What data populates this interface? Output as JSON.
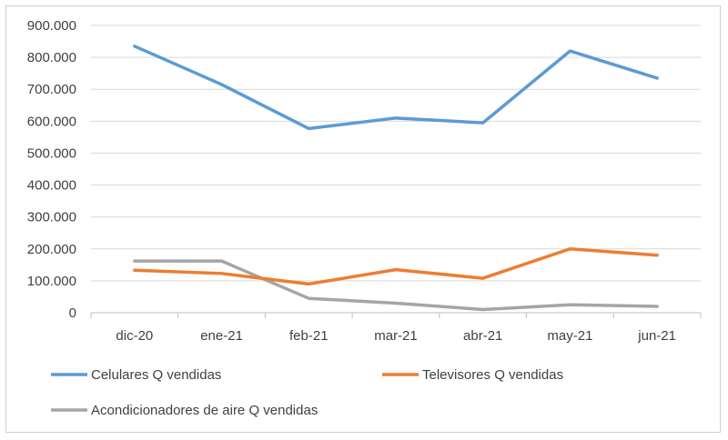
{
  "chart_data": {
    "type": "line",
    "categories": [
      "dic-20",
      "ene-21",
      "feb-21",
      "mar-21",
      "abr-21",
      "may-21",
      "jun-21"
    ],
    "series": [
      {
        "name": "Celulares Q vendidas",
        "color": "#5B9BD5",
        "values": [
          835000,
          715000,
          577000,
          610000,
          595000,
          820000,
          735000
        ]
      },
      {
        "name": "Televisores Q vendidas",
        "color": "#ED7D31",
        "values": [
          133000,
          123000,
          90000,
          135000,
          108000,
          200000,
          180000
        ]
      },
      {
        "name": "Acondicionadores de aire Q vendidas",
        "color": "#A5A5A5",
        "values": [
          162000,
          162000,
          45000,
          30000,
          10000,
          25000,
          20000
        ]
      }
    ],
    "yticks": [
      "0",
      "100.000",
      "200.000",
      "300.000",
      "400.000",
      "500.000",
      "600.000",
      "700.000",
      "800.000",
      "900.000"
    ],
    "ylim": [
      0,
      900000
    ],
    "grid": true,
    "legend": "bottom",
    "title": "",
    "xlabel": "",
    "ylabel": ""
  }
}
